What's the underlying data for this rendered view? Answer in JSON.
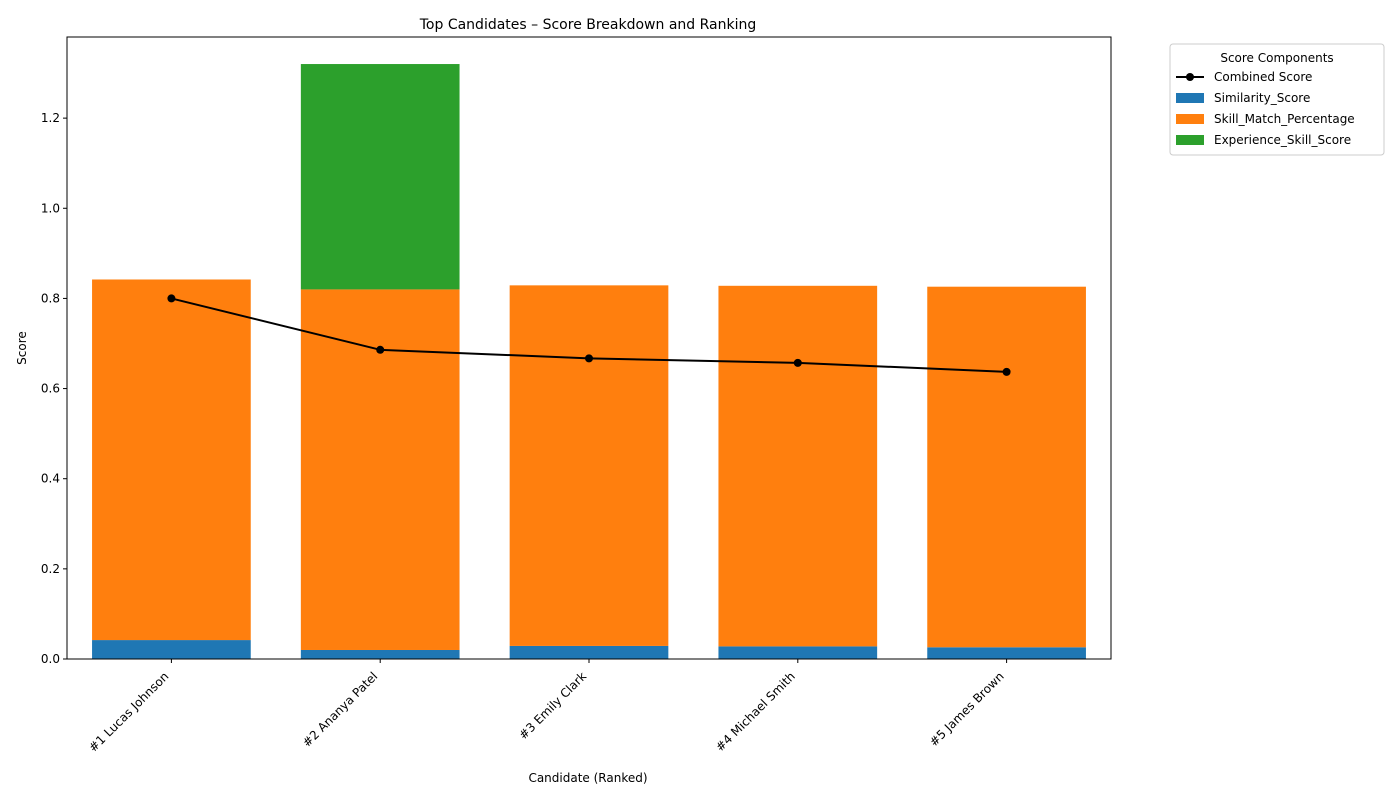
{
  "chart_data": {
    "type": "bar",
    "stacked": true,
    "title": "Top Candidates – Score Breakdown and Ranking",
    "xlabel": "Candidate (Ranked)",
    "ylabel": "Score",
    "ylim": [
      0,
      1.38
    ],
    "yticks": [
      0.0,
      0.2,
      0.4,
      0.6,
      0.8,
      1.0,
      1.2
    ],
    "ytick_labels": [
      "0.0",
      "0.2",
      "0.4",
      "0.6",
      "0.8",
      "1.0",
      "1.2"
    ],
    "categories": [
      "#1 Lucas Johnson",
      "#2 Ananya Patel",
      "#3 Emily Clark",
      "#4 Michael Smith",
      "#5 James Brown"
    ],
    "series": [
      {
        "name": "Similarity_Score",
        "color": "#1f77b4",
        "values": [
          0.042,
          0.02,
          0.029,
          0.028,
          0.026
        ]
      },
      {
        "name": "Skill_Match_Percentage",
        "color": "#ff7f0e",
        "values": [
          0.8,
          0.8,
          0.8,
          0.8,
          0.8
        ]
      },
      {
        "name": "Experience_Skill_Score",
        "color": "#2ca02c",
        "values": [
          0.0,
          0.5,
          0.0,
          0.0,
          0.0
        ]
      }
    ],
    "line": {
      "name": "Combined Score",
      "color": "#000000",
      "values": [
        0.8,
        0.686,
        0.667,
        0.657,
        0.637
      ]
    },
    "legend": {
      "title": "Score Components",
      "placement": "outside-top-right"
    },
    "grid": false
  }
}
